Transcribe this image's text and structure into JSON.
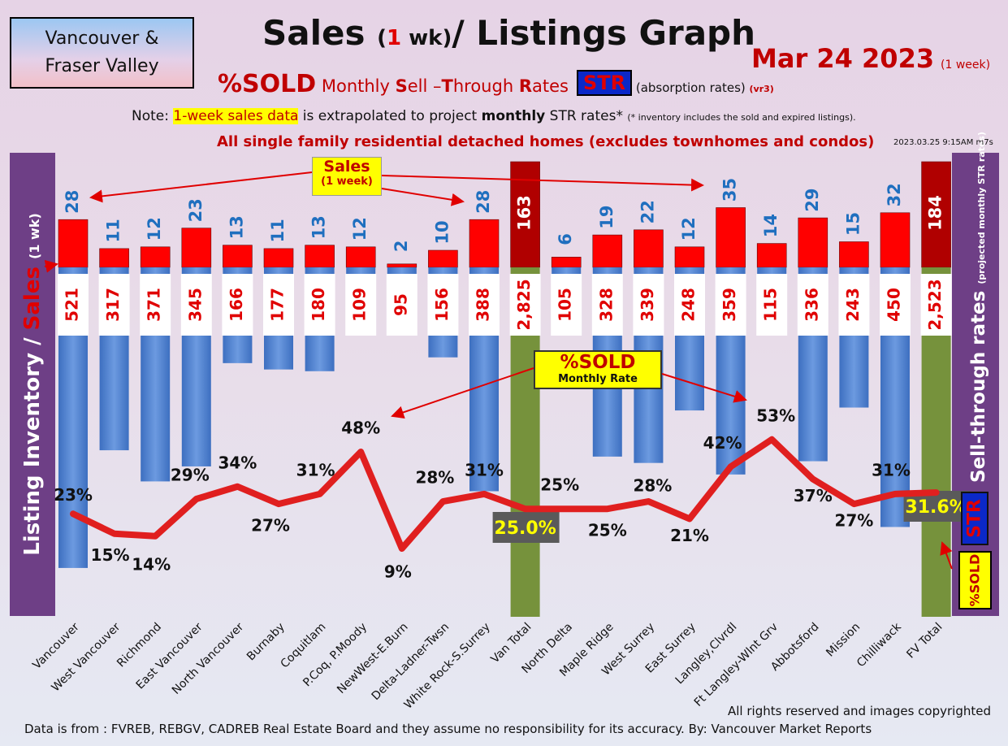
{
  "header": {
    "region_line1": "Vancouver &",
    "region_line2": "Fraser Valley",
    "title_a": "Sales",
    "title_b": "(",
    "title_c": "1",
    "title_d": " wk)",
    "title_e": "/ Listings Graph",
    "date": "Mar 24  2023",
    "date_note": "(1 week)",
    "subtitle_sold": "%SOLD",
    "subtitle_rest_1": " Monthly ",
    "subtitle_S": "S",
    "subtitle_ell": "ell –",
    "subtitle_T": "T",
    "subtitle_hrough": "hrough ",
    "subtitle_R": "R",
    "subtitle_ates": "ates",
    "str_badge": "STR",
    "absorption": " (absorption rates) ",
    "version": "(vr3)",
    "note_a": "Note: ",
    "note_hl": "1-week sales data",
    "note_b": " is extrapolated to project ",
    "note_bold": "monthly",
    "note_c": " STR rates* ",
    "note_small": "(* inventory includes the sold and expired listings).",
    "subhead": "All single family residential detached homes (excludes townhomes and condos)",
    "timestamp": "2023.03.25 9:15AM m7s"
  },
  "side_labels": {
    "left_a": "Listing Inventory ",
    "left_b": "/",
    "left_c": " Sales ",
    "left_d": "(1 wk)",
    "right_a": "Sell-through rates ",
    "right_b": "(projected monthly STR rates)",
    "right_str": "STR",
    "right_sold": "%SOLD"
  },
  "callouts": {
    "sales_title": "Sales",
    "sales_sub": "(1 week)",
    "sold_title": "%SOLD",
    "sold_sub": "Monthly Rate"
  },
  "footer": {
    "rights": "All rights reserved and  images copyrighted",
    "source": "Data is from : FVREB, REBGV, CADREB Real Estate Board and they assume no responsibility for its accuracy. By: Vancouver Market Reports"
  },
  "colors": {
    "sales_bar": "#ff0000",
    "total_sales_bar": "#b00000",
    "listings_bar": "#4f81d0",
    "total_listings_bar": "#76923c",
    "str_line": "#e01f1f",
    "sales_label": "#1f6fbf",
    "listing_label": "#e00000"
  },
  "chart_data": {
    "type": "bar",
    "categories": [
      "Vancouver",
      "West Vancouver",
      "Richmond",
      "East Vancouver",
      "North Vancouver",
      "Burnaby",
      "Coquitlam",
      "P.Coq, P.Moody",
      "NewWest-E.Burn",
      "Delta-Ladner-Twsn",
      "White Rock-S.Surrey",
      "Van Total",
      "North Delta",
      "Maple Ridge",
      "West Surrey",
      "East Surrey",
      "Langley,Clvrdl",
      "Ft Langley-Wlnt Grv",
      "Abbotsford",
      "Mission",
      "Chilliwack",
      "FV Total"
    ],
    "series": [
      {
        "name": "Sales",
        "values": [
          28,
          11,
          12,
          23,
          13,
          11,
          13,
          12,
          2,
          10,
          28,
          163,
          6,
          19,
          22,
          12,
          35,
          14,
          29,
          15,
          32,
          184
        ]
      },
      {
        "name": "Listing Inventory",
        "values": [
          521,
          317,
          371,
          345,
          166,
          177,
          180,
          109,
          95,
          156,
          388,
          2825,
          105,
          328,
          339,
          248,
          359,
          115,
          336,
          243,
          450,
          2523
        ]
      },
      {
        "name": "%SOLD",
        "values": [
          23,
          15,
          14,
          29,
          34,
          27,
          31,
          48,
          9,
          28,
          31,
          25.0,
          25,
          25,
          28,
          21,
          42,
          53,
          37,
          27,
          31,
          31.6
        ]
      }
    ],
    "sales_labels": [
      "28",
      "11",
      "12",
      "23",
      "13",
      "11",
      "13",
      "12",
      "2",
      "10",
      "28",
      "163",
      "6",
      "19",
      "22",
      "12",
      "35",
      "14",
      "29",
      "15",
      "32",
      "184"
    ],
    "listing_labels": [
      "521",
      "317",
      "371",
      "345",
      "166",
      "177",
      "180",
      "109",
      "95",
      "156",
      "388",
      "2,825",
      "105",
      "328",
      "339",
      "248",
      "359",
      "115",
      "336",
      "243",
      "450",
      "2,523"
    ],
    "str_labels": [
      "23%",
      "15%",
      "14%",
      "29%",
      "34%",
      "27%",
      "31%",
      "48%",
      "9%",
      "28%",
      "31%",
      "25.0%",
      "25%",
      "25%",
      "28%",
      "21%",
      "42%",
      "53%",
      "37%",
      "27%",
      "31%",
      "31.6%"
    ],
    "totals": [
      "Van Total",
      "FV Total"
    ]
  }
}
